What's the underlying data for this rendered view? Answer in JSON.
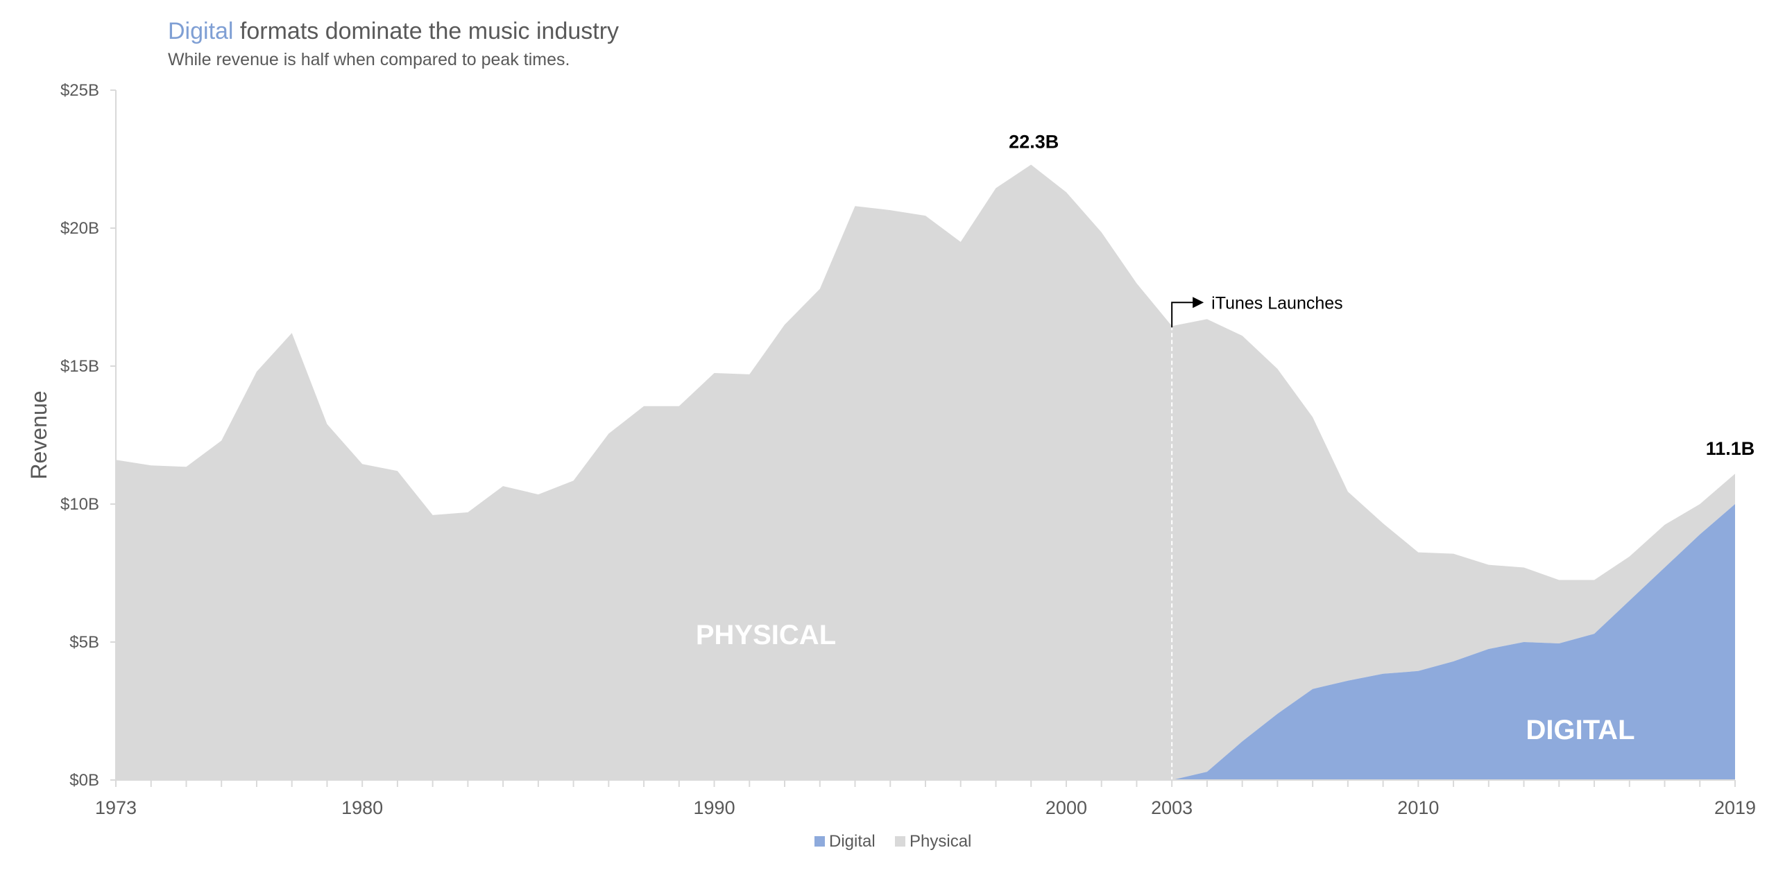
{
  "chart_data": {
    "type": "area",
    "title_accent": "Digital",
    "title_rest": " formats dominate the music industry",
    "subtitle": "While revenue is half when compared to peak times.",
    "ylabel": "Revenue",
    "xlabel": "",
    "ylim": [
      0,
      25
    ],
    "xlim": [
      1973,
      2019
    ],
    "grid": false,
    "stacked": true,
    "y_ticks": [
      {
        "value": 0,
        "label": "$0B"
      },
      {
        "value": 5,
        "label": "$5B"
      },
      {
        "value": 10,
        "label": "$10B"
      },
      {
        "value": 15,
        "label": "$15B"
      },
      {
        "value": 20,
        "label": "$20B"
      },
      {
        "value": 25,
        "label": "$25B"
      }
    ],
    "x_ticks": [
      {
        "value": 1973,
        "label": "1973"
      },
      {
        "value": 1980,
        "label": "1980"
      },
      {
        "value": 1990,
        "label": "1990"
      },
      {
        "value": 2000,
        "label": "2000"
      },
      {
        "value": 2003,
        "label": "2003"
      },
      {
        "value": 2010,
        "label": "2010"
      },
      {
        "value": 2019,
        "label": "2019"
      }
    ],
    "x": [
      1973,
      1974,
      1975,
      1976,
      1977,
      1978,
      1979,
      1980,
      1981,
      1982,
      1983,
      1984,
      1985,
      1986,
      1987,
      1988,
      1989,
      1990,
      1991,
      1992,
      1993,
      1994,
      1995,
      1996,
      1997,
      1998,
      1999,
      2000,
      2001,
      2002,
      2003,
      2004,
      2005,
      2006,
      2007,
      2008,
      2009,
      2010,
      2011,
      2012,
      2013,
      2014,
      2015,
      2016,
      2017,
      2018,
      2019
    ],
    "series": [
      {
        "name": "Digital",
        "color": "#8eaadc",
        "values": [
          0,
          0,
          0,
          0,
          0,
          0,
          0,
          0,
          0,
          0,
          0,
          0,
          0,
          0,
          0,
          0,
          0,
          0,
          0,
          0,
          0,
          0,
          0,
          0,
          0,
          0,
          0,
          0,
          0,
          0,
          0,
          0.3,
          1.4,
          2.4,
          3.3,
          3.6,
          3.85,
          3.95,
          4.3,
          4.75,
          5.0,
          4.95,
          5.3,
          6.5,
          7.7,
          8.9,
          10.0
        ]
      },
      {
        "name": "Physical",
        "color": "#d9d9d9",
        "values": [
          11.6,
          11.4,
          11.35,
          12.3,
          14.8,
          16.2,
          12.9,
          11.45,
          11.2,
          9.6,
          9.7,
          10.65,
          10.35,
          10.85,
          12.55,
          13.55,
          13.55,
          14.75,
          14.7,
          16.5,
          17.8,
          20.8,
          20.65,
          20.45,
          19.5,
          21.45,
          22.3,
          21.3,
          19.85,
          18.0,
          16.45,
          16.4,
          14.7,
          12.5,
          9.85,
          6.85,
          5.45,
          4.3,
          3.9,
          3.05,
          2.7,
          2.3,
          1.95,
          1.6,
          1.55,
          1.1,
          1.1
        ]
      }
    ],
    "legend": {
      "position": "bottom-center",
      "items": [
        "Digital",
        "Physical"
      ]
    },
    "annotations": {
      "peak_value": 22.3,
      "peak_year": 1999,
      "peak_label": "22.3B",
      "end_value": 11.1,
      "end_year": 2019,
      "end_label": "11.1B",
      "event_year": 2003,
      "event_label": "iTunes Launches",
      "physical_area_label": "PHYSICAL",
      "digital_area_label": "DIGITAL"
    }
  }
}
